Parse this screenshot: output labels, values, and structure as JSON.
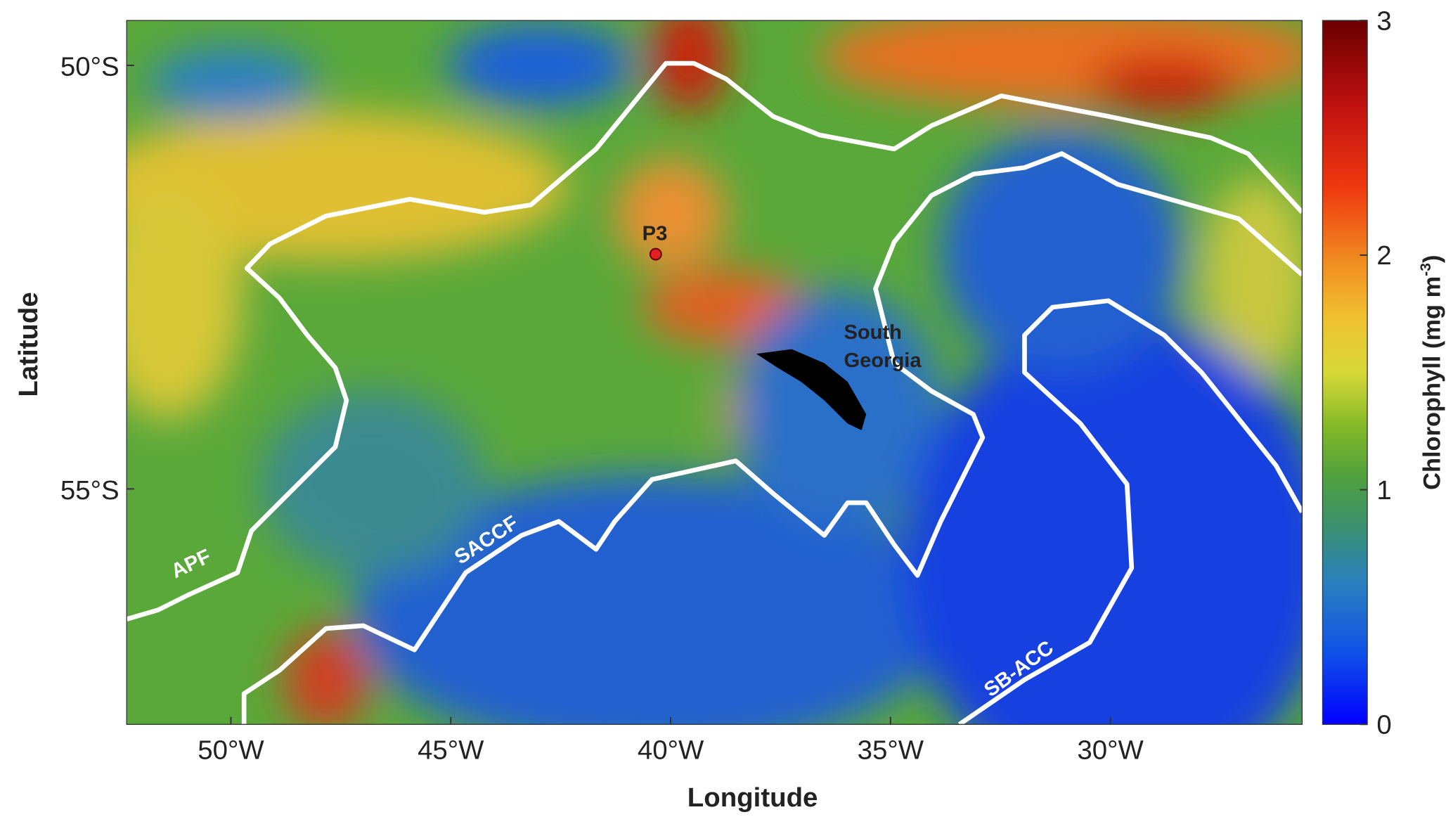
{
  "map": {
    "axes": {
      "x_label": "Longitude",
      "y_label": "Latitude",
      "lon_range": [
        -52.37,
        -25.64
      ],
      "lat_range": [
        -49.47,
        -57.78
      ],
      "xticks": [
        {
          "value": -50,
          "label": "50°W"
        },
        {
          "value": -45,
          "label": "45°W"
        },
        {
          "value": -40,
          "label": "40°W"
        },
        {
          "value": -35,
          "label": "35°W"
        },
        {
          "value": -30,
          "label": "30°W"
        }
      ],
      "yticks": [
        {
          "value": -50,
          "label": "50°S"
        },
        {
          "value": -55,
          "label": "55°S"
        }
      ]
    },
    "colorbar": {
      "label": [
        "Chlorophyll (mg m",
        "-3",
        ")"
      ],
      "range": [
        0,
        3
      ],
      "ticks": [
        0,
        1,
        2,
        3
      ]
    },
    "annotations": {
      "station": "P3",
      "island": [
        "South",
        "Georgia"
      ],
      "fronts": [
        "APF",
        "SACCF",
        "SB-ACC"
      ]
    }
  }
}
